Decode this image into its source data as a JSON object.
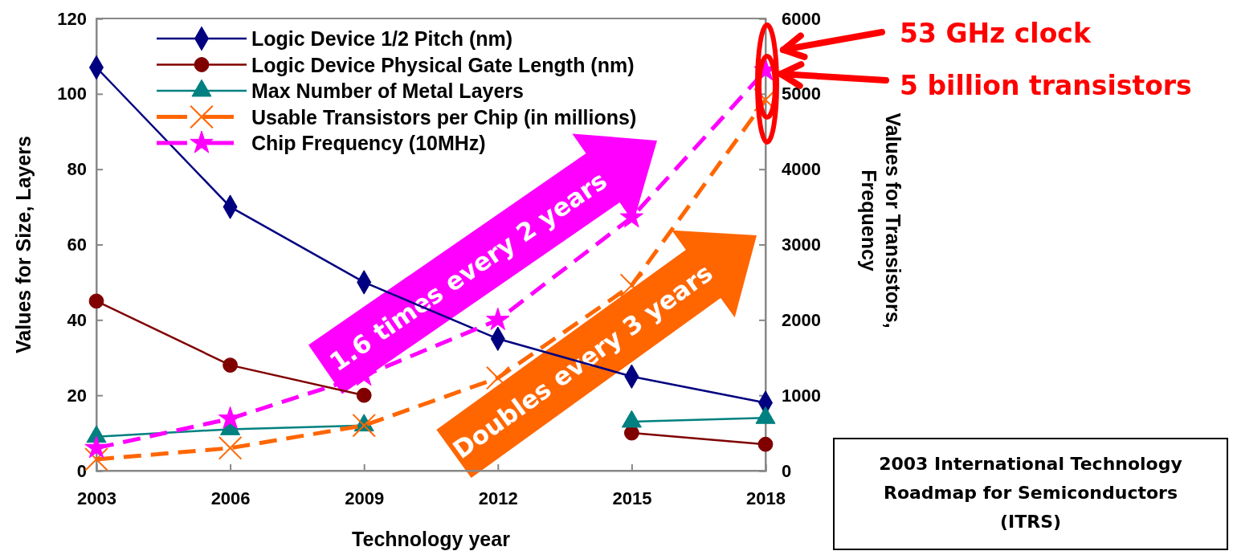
{
  "chart_data": {
    "type": "line",
    "xlabel": "Technology year",
    "ylabel": "Values for Size, Layers",
    "y2label": "Values for Transistors,\nFrequency",
    "categories": [
      "2003",
      "2006",
      "2009",
      "2012",
      "2015",
      "2018"
    ],
    "ylim": [
      0,
      120
    ],
    "yticks": [
      0,
      20,
      40,
      60,
      80,
      100,
      120
    ],
    "y2lim": [
      0,
      6000
    ],
    "y2ticks": [
      0,
      1000,
      2000,
      3000,
      4000,
      5000,
      6000
    ],
    "grid": false,
    "legend": "top left",
    "series": [
      {
        "name": "Logic Device 1/2 Pitch (nm)",
        "color": "#000080",
        "marker": "diamond",
        "line_style": "solid",
        "values": [
          107,
          70,
          50,
          35,
          25,
          18
        ]
      },
      {
        "name": "Logic Device Physical Gate Length (nm)",
        "color": "#800000",
        "marker": "circle",
        "line_style": "solid",
        "values": [
          45,
          28,
          20,
          null,
          10,
          7
        ]
      },
      {
        "name": "Max Number of Metal Layers",
        "color": "#008080",
        "marker": "triangle",
        "line_style": "solid",
        "values": [
          9,
          11,
          12,
          null,
          13,
          14
        ]
      },
      {
        "name": "Usable Transistors per Chip (in millions)",
        "color": "#ff6600",
        "marker": "cross",
        "line_style": "dashed",
        "axis": "y2",
        "values": [
          150,
          300,
          600,
          1230,
          2460,
          4920
        ]
      },
      {
        "name": "Chip Frequency (10MHz)",
        "color": "#ff00ff",
        "marker": "star",
        "line_style": "dashed",
        "axis": "y2",
        "values": [
          300,
          690,
          1260,
          2000,
          3360,
          5310
        ]
      }
    ],
    "annotations": [
      "1.6 times every 2 years",
      "Doubles every 3 years",
      "53 GHz clock",
      "5 billion transistors",
      "2003 International Technology Roadmap for Semiconductors (ITRS)"
    ]
  }
}
